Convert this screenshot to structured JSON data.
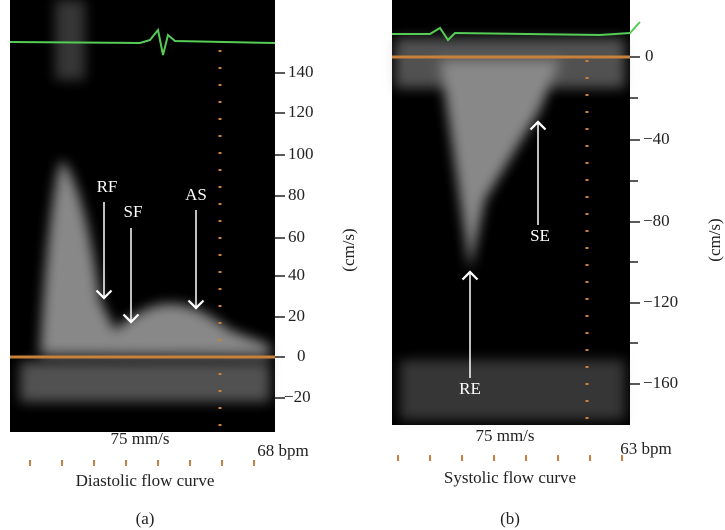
{
  "panels": [
    {
      "annotations": [
        "RF",
        "SF",
        "AS"
      ],
      "yticks": [
        "140",
        "120",
        "100",
        "80",
        "60",
        "40",
        "20",
        "0",
        "−20"
      ],
      "unit": "(cm/s)",
      "speed": "75 mm/s",
      "rate": "68 bpm",
      "caption": "Diastolic flow curve",
      "label": "(a)"
    },
    {
      "annotations": [
        "SE",
        "RE"
      ],
      "yticks": [
        "0",
        "−40",
        "−80",
        "−120",
        "−160"
      ],
      "unit": "(cm/s)",
      "speed": "75 mm/s",
      "rate": "63 bpm",
      "caption": "Systolic flow curve",
      "label": "(b)"
    }
  ]
}
